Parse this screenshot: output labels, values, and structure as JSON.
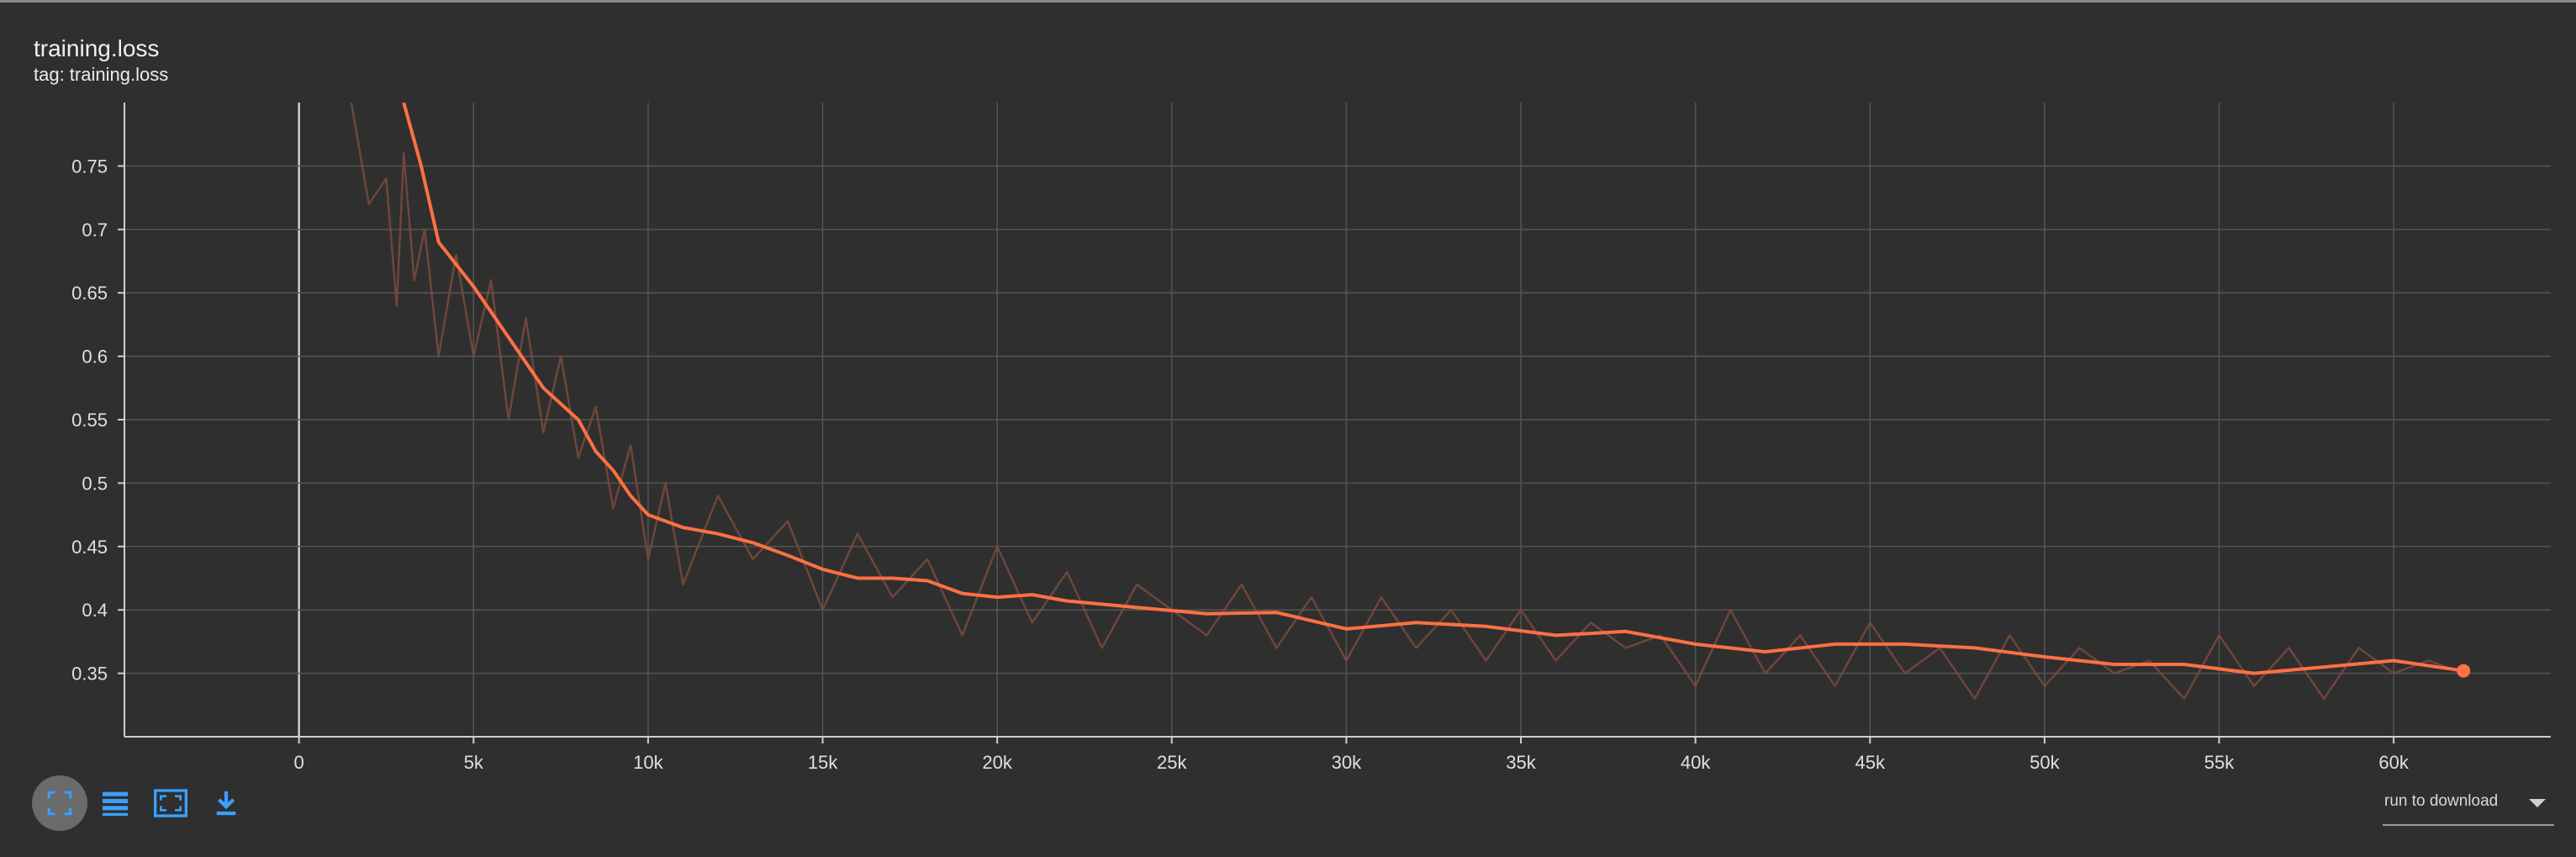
{
  "card": {
    "title": "training.loss",
    "subtitle": "tag: training.loss"
  },
  "colors": {
    "background": "#2f2f2f",
    "smoothed_line": "#ff7043",
    "raw_line": "#7a4a3c",
    "grid": "#555555",
    "toolbar_icons": "#3aa0ff"
  },
  "toolbar": {
    "buttons": [
      {
        "icon": "fit-domain-icon"
      },
      {
        "icon": "lines-toggle-icon"
      },
      {
        "icon": "fit-to-data-icon"
      },
      {
        "icon": "download-icon"
      }
    ],
    "download_select": "run to download"
  },
  "chart_data": {
    "type": "line",
    "title": "",
    "xlabel": "",
    "ylabel": "",
    "xlim": [
      -5000,
      64500
    ],
    "ylim": [
      0.3,
      0.8
    ],
    "x_ticks": [
      0,
      5000,
      10000,
      15000,
      20000,
      25000,
      30000,
      35000,
      40000,
      45000,
      50000,
      55000,
      60000
    ],
    "x_tick_labels": [
      "0",
      "5k",
      "10k",
      "15k",
      "20k",
      "25k",
      "30k",
      "35k",
      "40k",
      "45k",
      "50k",
      "55k",
      "60k"
    ],
    "y_ticks": [
      0.35,
      0.4,
      0.45,
      0.5,
      0.55,
      0.6,
      0.65,
      0.7,
      0.75
    ],
    "y_tick_labels": [
      "0.35",
      "0.4",
      "0.45",
      "0.5",
      "0.55",
      "0.6",
      "0.65",
      "0.7",
      "0.75"
    ],
    "grid": true,
    "series": [
      {
        "role": "smoothed",
        "x": [
          3000,
          3500,
          4000,
          5000,
          6000,
          7000,
          8000,
          8500,
          9000,
          9500,
          10000,
          11000,
          12000,
          13000,
          14000,
          15000,
          16000,
          17000,
          18000,
          19000,
          20000,
          21000,
          22000,
          24000,
          26000,
          28000,
          30000,
          32000,
          34000,
          36000,
          38000,
          40000,
          42000,
          44000,
          46000,
          48000,
          50000,
          52000,
          54000,
          56000,
          58000,
          60000,
          62000
        ],
        "y": [
          0.8,
          0.75,
          0.69,
          0.655,
          0.615,
          0.575,
          0.55,
          0.525,
          0.51,
          0.49,
          0.475,
          0.465,
          0.46,
          0.453,
          0.443,
          0.432,
          0.425,
          0.425,
          0.423,
          0.413,
          0.41,
          0.412,
          0.407,
          0.402,
          0.397,
          0.398,
          0.385,
          0.39,
          0.387,
          0.38,
          0.383,
          0.373,
          0.367,
          0.373,
          0.373,
          0.37,
          0.363,
          0.357,
          0.357,
          0.35,
          0.355,
          0.36,
          0.352
        ]
      },
      {
        "role": "raw",
        "x": [
          1500,
          2000,
          2500,
          2800,
          3000,
          3300,
          3600,
          4000,
          4500,
          5000,
          5500,
          6000,
          6500,
          7000,
          7500,
          8000,
          8500,
          9000,
          9500,
          10000,
          10500,
          11000,
          12000,
          13000,
          14000,
          15000,
          16000,
          17000,
          18000,
          19000,
          20000,
          21000,
          22000,
          23000,
          24000,
          25000,
          26000,
          27000,
          28000,
          29000,
          30000,
          31000,
          32000,
          33000,
          34000,
          35000,
          36000,
          37000,
          38000,
          39000,
          40000,
          41000,
          42000,
          43000,
          44000,
          45000,
          46000,
          47000,
          48000,
          49000,
          50000,
          51000,
          52000,
          53000,
          54000,
          55000,
          56000,
          57000,
          58000,
          59000,
          60000,
          61000,
          62000
        ],
        "y": [
          0.8,
          0.72,
          0.74,
          0.64,
          0.76,
          0.66,
          0.7,
          0.6,
          0.68,
          0.6,
          0.66,
          0.55,
          0.63,
          0.54,
          0.6,
          0.52,
          0.56,
          0.48,
          0.53,
          0.44,
          0.5,
          0.42,
          0.49,
          0.44,
          0.47,
          0.4,
          0.46,
          0.41,
          0.44,
          0.38,
          0.45,
          0.39,
          0.43,
          0.37,
          0.42,
          0.4,
          0.38,
          0.42,
          0.37,
          0.41,
          0.36,
          0.41,
          0.37,
          0.4,
          0.36,
          0.4,
          0.36,
          0.39,
          0.37,
          0.38,
          0.34,
          0.4,
          0.35,
          0.38,
          0.34,
          0.39,
          0.35,
          0.37,
          0.33,
          0.38,
          0.34,
          0.37,
          0.35,
          0.36,
          0.33,
          0.38,
          0.34,
          0.37,
          0.33,
          0.37,
          0.35,
          0.36,
          0.35
        ]
      }
    ],
    "last_point": {
      "x": 62000,
      "y": 0.352
    }
  }
}
